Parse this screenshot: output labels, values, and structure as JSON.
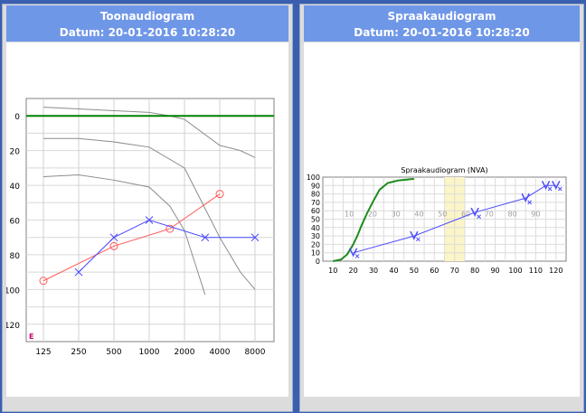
{
  "tone_panel": {
    "title": "Toonaudiogram",
    "date": "Datum: 20-01-2016 10:28:20"
  },
  "speech_panel": {
    "title": "Spraakaudiogram",
    "date": "Datum: 20-01-2016 10:28:20"
  },
  "colors": {
    "header_bg": "#6f97e8",
    "right_ear": "#ff5a5a",
    "left_ear": "#4a4aff",
    "reference_line": "#008000",
    "normal_curve": "#1e8c1e",
    "highlight_band": "#fbf5c8"
  },
  "chart_data": [
    {
      "type": "line",
      "title": "",
      "marker_label": "E",
      "x_scale": "log",
      "x_ticks": [
        "125",
        "250",
        "500",
        "1000",
        "2000",
        "4000",
        "8000"
      ],
      "y_ticks": [
        "0",
        "20",
        "40",
        "60",
        "80",
        "100",
        "120"
      ],
      "ylim": [
        -10,
        130
      ],
      "y_inverted": true,
      "grid": true,
      "reference_line": {
        "y": 0
      },
      "series": [
        {
          "marker": "o",
          "x": [
            125,
            500,
            1500,
            4000
          ],
          "y": [
            95,
            75,
            65,
            45
          ]
        },
        {
          "marker": "x",
          "x": [
            250,
            500,
            1000,
            3000,
            8000
          ],
          "y": [
            90,
            70,
            60,
            70,
            70
          ]
        }
      ],
      "boundary_curves": [
        {
          "x": [
            125,
            250,
            500,
            1000,
            1500,
            2000,
            4000,
            6000,
            8000
          ],
          "y": [
            -5,
            -4,
            -3,
            -2,
            0,
            2,
            17,
            20,
            24
          ]
        },
        {
          "x": [
            125,
            250,
            500,
            1000,
            2000,
            4000,
            6000,
            8000
          ],
          "y": [
            13,
            13,
            15,
            18,
            30,
            70,
            90,
            100
          ]
        },
        {
          "x": [
            125,
            250,
            500,
            1000,
            1500,
            2000,
            3000
          ],
          "y": [
            35,
            34,
            37,
            41,
            52,
            66,
            103
          ]
        }
      ]
    },
    {
      "type": "line",
      "title": "Spraakaudiogram (NVA)",
      "xlim": [
        5,
        125
      ],
      "ylim": [
        0,
        100
      ],
      "x_ticks": [
        "10",
        "20",
        "30",
        "40",
        "50",
        "60",
        "70",
        "80",
        "90",
        "100",
        "110",
        "120"
      ],
      "y_ticks": [
        "0",
        "10",
        "20",
        "30",
        "40",
        "50",
        "60",
        "70",
        "80",
        "90",
        "100"
      ],
      "grid": true,
      "inner_labels": [
        "10",
        "20",
        "30",
        "40",
        "50",
        "60",
        "70",
        "80",
        "90"
      ],
      "highlight_band": [
        65,
        75
      ],
      "normal_curve": {
        "x": [
          10,
          14,
          17,
          20,
          22,
          24,
          27,
          30,
          33,
          37,
          42,
          50
        ],
        "y": [
          0,
          2,
          8,
          20,
          30,
          42,
          58,
          72,
          85,
          93,
          96,
          98
        ]
      },
      "series": [
        {
          "marker": "V",
          "x": [
            20,
            50,
            80,
            105,
            115,
            120
          ],
          "y": [
            10,
            30,
            58,
            75,
            90,
            90
          ]
        }
      ],
      "x_markers": {
        "x": [
          22,
          52,
          82,
          107,
          117,
          122
        ],
        "y": [
          6,
          26,
          53,
          70,
          86,
          86
        ]
      }
    }
  ]
}
